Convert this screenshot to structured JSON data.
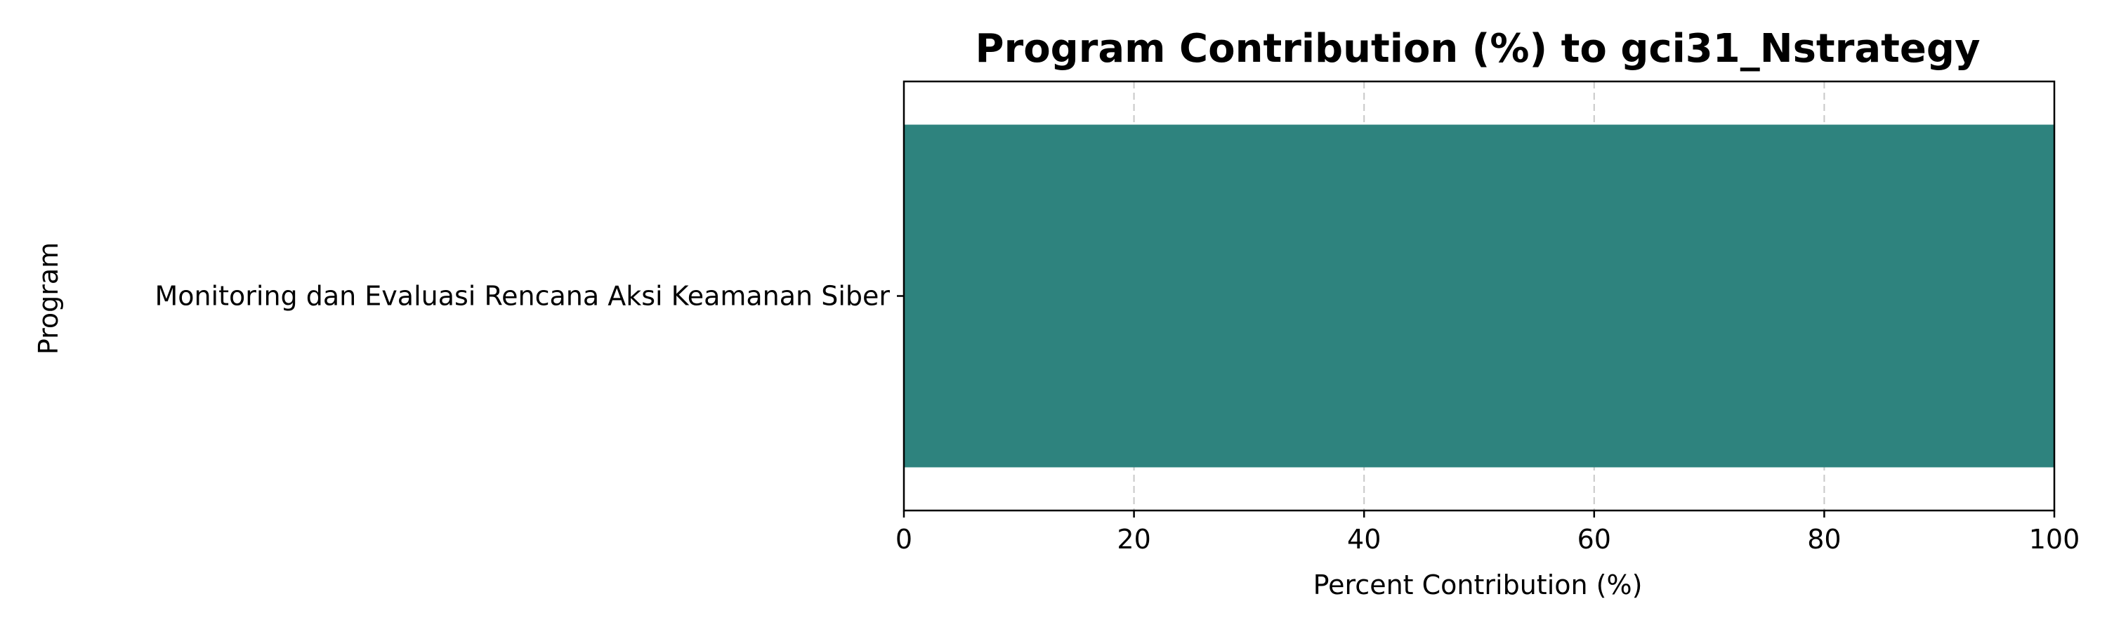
{
  "chart_data": {
    "type": "bar",
    "orientation": "horizontal",
    "title": "Program Contribution (%) to gci31_Nstrategy",
    "xlabel": "Percent Contribution (%)",
    "ylabel": "Program",
    "categories": [
      "Monitoring dan Evaluasi Rencana Aksi Keamanan Siber"
    ],
    "values": [
      100
    ],
    "xlim": [
      0,
      100
    ],
    "xticks": [
      0,
      20,
      40,
      60,
      80,
      100
    ],
    "grid": "x-dashed",
    "bar_color": "#2e837e"
  }
}
